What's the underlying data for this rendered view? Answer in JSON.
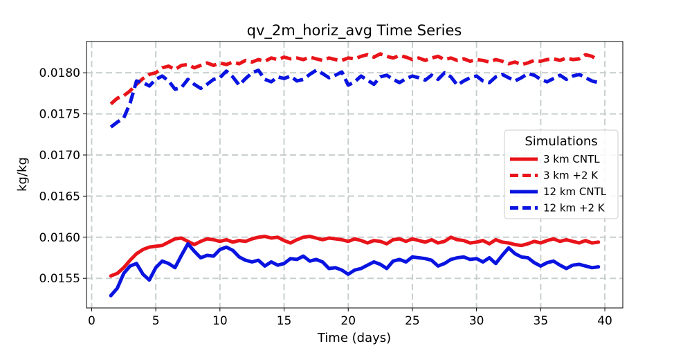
{
  "chart_data": {
    "type": "line",
    "title": "qv_2m_horiz_avg Time Series",
    "xlabel": "Time (days)",
    "ylabel": "kg/kg",
    "xlim": [
      -0.4,
      41.4
    ],
    "ylim": [
      0.01514,
      0.01838
    ],
    "grid": true,
    "x_ticks": [
      0,
      5,
      10,
      15,
      20,
      25,
      30,
      35,
      40
    ],
    "y_ticks": [
      0.0155,
      0.016,
      0.0165,
      0.017,
      0.0175,
      0.018
    ],
    "x_tick_labels": [
      "0",
      "5",
      "10",
      "15",
      "20",
      "25",
      "30",
      "35",
      "40"
    ],
    "y_tick_labels": [
      "0.0155",
      "0.0160",
      "0.0165",
      "0.0170",
      "0.0175",
      "0.0180"
    ],
    "legend": {
      "title": "Simulations",
      "placement": "center-right"
    },
    "series": [
      {
        "name": "3 km CNTL",
        "color": "#e8141a",
        "style": "solid",
        "x": [
          1.5,
          2.0,
          2.5,
          3.0,
          3.5,
          4.0,
          4.5,
          5.0,
          5.5,
          6.0,
          6.5,
          7.0,
          7.5,
          8.0,
          8.5,
          9.0,
          9.5,
          10.0,
          10.5,
          11.0,
          11.5,
          12.0,
          12.5,
          13.0,
          13.5,
          14.0,
          14.5,
          15.0,
          15.5,
          16.0,
          16.5,
          17.0,
          17.5,
          18.0,
          18.5,
          19.0,
          19.5,
          20.0,
          20.5,
          21.0,
          21.5,
          22.0,
          22.5,
          23.0,
          23.5,
          24.0,
          24.5,
          25.0,
          25.5,
          26.0,
          26.5,
          27.0,
          27.5,
          28.0,
          28.5,
          29.0,
          29.5,
          30.0,
          30.5,
          31.0,
          31.5,
          32.0,
          32.5,
          33.0,
          33.5,
          34.0,
          34.5,
          35.0,
          35.5,
          36.0,
          36.5,
          37.0,
          37.5,
          38.0,
          38.5,
          39.0,
          39.5
        ],
        "values": [
          0.01553,
          0.01556,
          0.01563,
          0.01572,
          0.0158,
          0.01585,
          0.01588,
          0.01589,
          0.0159,
          0.01594,
          0.01598,
          0.01599,
          0.01595,
          0.01591,
          0.01595,
          0.01598,
          0.01597,
          0.01595,
          0.01597,
          0.01594,
          0.01596,
          0.01595,
          0.01598,
          0.016,
          0.01601,
          0.01599,
          0.016,
          0.01596,
          0.01593,
          0.01597,
          0.016,
          0.01601,
          0.01599,
          0.01597,
          0.01599,
          0.01598,
          0.01597,
          0.01595,
          0.01598,
          0.01596,
          0.01593,
          0.01596,
          0.01595,
          0.01592,
          0.01597,
          0.01598,
          0.01595,
          0.01598,
          0.01596,
          0.01594,
          0.01597,
          0.01593,
          0.01595,
          0.016,
          0.01597,
          0.01596,
          0.01593,
          0.01594,
          0.01596,
          0.01592,
          0.01597,
          0.01594,
          0.01593,
          0.01591,
          0.0159,
          0.01592,
          0.01595,
          0.01593,
          0.01596,
          0.01598,
          0.01595,
          0.01597,
          0.01595,
          0.01593,
          0.01596,
          0.01593,
          0.01594
        ]
      },
      {
        "name": "3 km +2 K",
        "color": "#e8141a",
        "style": "dashed",
        "x": [
          1.5,
          2.0,
          2.5,
          3.0,
          3.5,
          4.0,
          4.5,
          5.0,
          5.5,
          6.0,
          6.5,
          7.0,
          7.5,
          8.0,
          8.5,
          9.0,
          9.5,
          10.0,
          10.5,
          11.0,
          11.5,
          12.0,
          12.5,
          13.0,
          13.5,
          14.0,
          14.5,
          15.0,
          15.5,
          16.0,
          16.5,
          17.0,
          17.5,
          18.0,
          18.5,
          19.0,
          19.5,
          20.0,
          20.5,
          21.0,
          21.5,
          22.0,
          22.5,
          23.0,
          23.5,
          24.0,
          24.5,
          25.0,
          25.5,
          26.0,
          26.5,
          27.0,
          27.5,
          28.0,
          28.5,
          29.0,
          29.5,
          30.0,
          30.5,
          31.0,
          31.5,
          32.0,
          32.5,
          33.0,
          33.5,
          34.0,
          34.5,
          35.0,
          35.5,
          36.0,
          36.5,
          37.0,
          37.5,
          38.0,
          38.5,
          39.0,
          39.5
        ],
        "values": [
          0.01762,
          0.01769,
          0.01772,
          0.01778,
          0.01786,
          0.01793,
          0.01798,
          0.018,
          0.01806,
          0.01808,
          0.01804,
          0.01809,
          0.0181,
          0.01806,
          0.01809,
          0.01812,
          0.01809,
          0.01812,
          0.0181,
          0.01813,
          0.01811,
          0.01815,
          0.01813,
          0.01816,
          0.01814,
          0.01818,
          0.01816,
          0.01819,
          0.01817,
          0.01818,
          0.01816,
          0.01819,
          0.01817,
          0.01815,
          0.01818,
          0.01816,
          0.01815,
          0.01818,
          0.01817,
          0.0182,
          0.01822,
          0.01819,
          0.01823,
          0.0182,
          0.01818,
          0.01821,
          0.01819,
          0.01816,
          0.01818,
          0.01815,
          0.01818,
          0.0182,
          0.01816,
          0.01818,
          0.01815,
          0.01817,
          0.01814,
          0.01816,
          0.01815,
          0.01813,
          0.01816,
          0.01814,
          0.01811,
          0.01813,
          0.0181,
          0.01812,
          0.01815,
          0.01814,
          0.01816,
          0.01817,
          0.01815,
          0.01818,
          0.01816,
          0.01817,
          0.01822,
          0.0182,
          0.01815
        ]
      },
      {
        "name": "12 km CNTL",
        "color": "#0a14e0",
        "style": "solid",
        "x": [
          1.5,
          2.0,
          2.5,
          3.0,
          3.5,
          4.0,
          4.5,
          5.0,
          5.5,
          6.0,
          6.5,
          7.0,
          7.5,
          8.0,
          8.5,
          9.0,
          9.5,
          10.0,
          10.5,
          11.0,
          11.5,
          12.0,
          12.5,
          13.0,
          13.5,
          14.0,
          14.5,
          15.0,
          15.5,
          16.0,
          16.5,
          17.0,
          17.5,
          18.0,
          18.5,
          19.0,
          19.5,
          20.0,
          20.5,
          21.0,
          21.5,
          22.0,
          22.5,
          23.0,
          23.5,
          24.0,
          24.5,
          25.0,
          25.5,
          26.0,
          26.5,
          27.0,
          27.5,
          28.0,
          28.5,
          29.0,
          29.5,
          30.0,
          30.5,
          31.0,
          31.5,
          32.0,
          32.5,
          33.0,
          33.5,
          34.0,
          34.5,
          35.0,
          35.5,
          36.0,
          36.5,
          37.0,
          37.5,
          38.0,
          38.5,
          39.0,
          39.5
        ],
        "values": [
          0.01529,
          0.01538,
          0.01556,
          0.01565,
          0.01568,
          0.01555,
          0.01548,
          0.01563,
          0.01571,
          0.01568,
          0.01563,
          0.01578,
          0.01592,
          0.01583,
          0.01575,
          0.01578,
          0.01577,
          0.01585,
          0.01588,
          0.01584,
          0.01576,
          0.01572,
          0.0157,
          0.01572,
          0.01565,
          0.0157,
          0.01566,
          0.01568,
          0.01574,
          0.01573,
          0.01577,
          0.01571,
          0.01573,
          0.0157,
          0.01562,
          0.01563,
          0.0156,
          0.01555,
          0.0156,
          0.01562,
          0.01566,
          0.0157,
          0.01567,
          0.01562,
          0.01571,
          0.01573,
          0.0157,
          0.01576,
          0.01575,
          0.01574,
          0.01572,
          0.01565,
          0.01568,
          0.01573,
          0.01575,
          0.01576,
          0.01573,
          0.01574,
          0.0157,
          0.01575,
          0.01568,
          0.01578,
          0.01587,
          0.0158,
          0.01576,
          0.01575,
          0.01569,
          0.01565,
          0.01569,
          0.01571,
          0.01566,
          0.01562,
          0.01566,
          0.01567,
          0.01565,
          0.01563,
          0.01564
        ]
      },
      {
        "name": "12 km +2 K",
        "color": "#0a14e0",
        "style": "dashed",
        "x": [
          1.5,
          2.0,
          2.5,
          3.0,
          3.5,
          4.0,
          4.5,
          5.0,
          5.5,
          6.0,
          6.5,
          7.0,
          7.5,
          8.0,
          8.5,
          9.0,
          9.5,
          10.0,
          10.5,
          11.0,
          11.5,
          12.0,
          12.5,
          13.0,
          13.5,
          14.0,
          14.5,
          15.0,
          15.5,
          16.0,
          16.5,
          17.0,
          17.5,
          18.0,
          18.5,
          19.0,
          19.5,
          20.0,
          20.5,
          21.0,
          21.5,
          22.0,
          22.5,
          23.0,
          23.5,
          24.0,
          24.5,
          25.0,
          25.5,
          26.0,
          26.5,
          27.0,
          27.5,
          28.0,
          28.5,
          29.0,
          29.5,
          30.0,
          30.5,
          31.0,
          31.5,
          32.0,
          32.5,
          33.0,
          33.5,
          34.0,
          34.5,
          35.0,
          35.5,
          36.0,
          36.5,
          37.0,
          37.5,
          38.0,
          38.5,
          39.0,
          39.5
        ],
        "values": [
          0.01734,
          0.0174,
          0.01745,
          0.01763,
          0.0179,
          0.01788,
          0.01784,
          0.01792,
          0.01796,
          0.0179,
          0.0178,
          0.01782,
          0.01792,
          0.01786,
          0.01781,
          0.01786,
          0.01792,
          0.01794,
          0.01802,
          0.01795,
          0.01785,
          0.01793,
          0.018,
          0.01803,
          0.01792,
          0.01789,
          0.01795,
          0.01793,
          0.01796,
          0.0179,
          0.01792,
          0.01798,
          0.01803,
          0.01799,
          0.01794,
          0.01797,
          0.01801,
          0.01785,
          0.01789,
          0.01796,
          0.01791,
          0.01786,
          0.01795,
          0.01797,
          0.01792,
          0.01788,
          0.01793,
          0.01796,
          0.01794,
          0.01791,
          0.01797,
          0.01792,
          0.018,
          0.01795,
          0.01785,
          0.0179,
          0.01794,
          0.01796,
          0.0179,
          0.01788,
          0.01795,
          0.01798,
          0.01794,
          0.0179,
          0.01794,
          0.01799,
          0.01797,
          0.01792,
          0.01789,
          0.01793,
          0.01797,
          0.01792,
          0.01796,
          0.01798,
          0.01794,
          0.0179,
          0.01788
        ]
      }
    ]
  }
}
